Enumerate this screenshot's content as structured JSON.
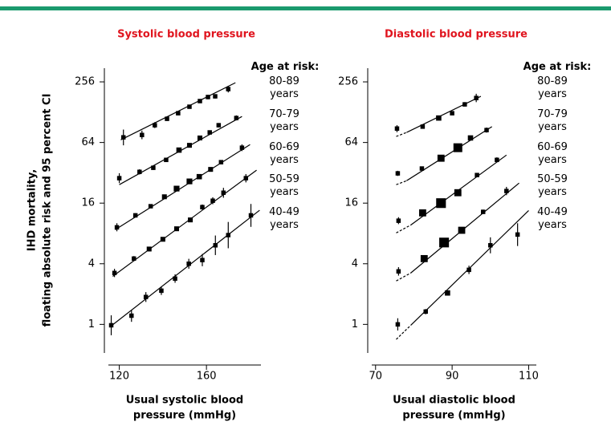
{
  "chart_data": [
    {
      "type": "scatter_fit",
      "title": "Systolic blood pressure",
      "ylabel": [
        "IHD mortality,",
        "floating absolute risk and 95 percent CI"
      ],
      "xlabel": [
        "Usual systolic blood",
        "pressure (mmHg)"
      ],
      "legend_title": "Age at risk:",
      "log_y": true,
      "color": "#000000",
      "dashed_start": false,
      "xlim": [
        115,
        185
      ],
      "xticks": [
        120,
        160
      ],
      "ylim": [
        0.52,
        350
      ],
      "yticks": [
        1,
        4,
        16,
        64,
        256
      ],
      "series": [
        {
          "name": "80-89 years",
          "x": [
            121.9,
            130.4,
            136.3,
            141.9,
            147,
            152.2,
            157,
            160.7,
            164,
            170
          ],
          "values": [
            72,
            76,
            95,
            110,
            125,
            145,
            165,
            181,
            184,
            217
          ],
          "lower": [
            60,
            69,
            89,
            105,
            120,
            139,
            159,
            172,
            175,
            201
          ],
          "upper": [
            86,
            84,
            102,
            116,
            130,
            151,
            172,
            190,
            193,
            234
          ],
          "sizes": [
            1,
            1,
            1,
            1,
            1,
            1,
            1,
            1,
            1,
            1
          ],
          "fit_x": [
            120.7,
            173.3
          ],
          "fit_y": [
            68,
            251
          ]
        },
        {
          "name": "70-79 years",
          "x": [
            120,
            129.3,
            135.6,
            141.5,
            147.4,
            152.2,
            157,
            161.5,
            165.6,
            173.7
          ],
          "values": [
            28.3,
            32.7,
            35.9,
            43,
            53.8,
            60,
            71,
            80.6,
            95,
            112
          ],
          "lower": [
            25.3,
            30.8,
            34.2,
            41,
            51.7,
            57.7,
            68.3,
            77.5,
            90.5,
            106
          ],
          "upper": [
            31.7,
            34.7,
            37.7,
            45.2,
            56,
            62.4,
            73.8,
            83.8,
            99.8,
            119
          ],
          "sizes": [
            1,
            1,
            1,
            1,
            1.2,
            1.1,
            1.1,
            1,
            1,
            1
          ],
          "fit_x": [
            120,
            176.3
          ],
          "fit_y": [
            24.4,
            116
          ]
        },
        {
          "name": "60-69 years",
          "x": [
            118.9,
            127.4,
            134.4,
            140.7,
            146.3,
            152.2,
            156.7,
            161.9,
            166.7,
            176.3
          ],
          "values": [
            9.2,
            12.1,
            14.9,
            18.5,
            22.3,
            26.3,
            29.3,
            34.6,
            40.8,
            56.8
          ],
          "lower": [
            8.4,
            11.5,
            14.3,
            17.8,
            21.4,
            25.3,
            28.2,
            33.3,
            38.9,
            52.6
          ],
          "upper": [
            10.1,
            12.7,
            15.5,
            19.2,
            23.2,
            27.4,
            30.5,
            36,
            42.8,
            61.3
          ],
          "sizes": [
            1,
            1,
            1,
            1.1,
            1.3,
            1.3,
            1.2,
            1.1,
            1,
            1
          ],
          "fit_x": [
            118.1,
            180
          ],
          "fit_y": [
            8.7,
            61
          ]
        },
        {
          "name": "50-59 years",
          "x": [
            117.8,
            126.7,
            133.7,
            140,
            146.3,
            152.6,
            158.1,
            162.9,
            167.8,
            178.1
          ],
          "values": [
            3.24,
            4.5,
            5.6,
            7.0,
            8.9,
            10.9,
            14.6,
            16.9,
            20.3,
            28.3
          ],
          "lower": [
            2.95,
            4.25,
            5.33,
            6.67,
            8.48,
            10.4,
            13.8,
            15.6,
            18.1,
            25.7
          ],
          "upper": [
            3.56,
            4.77,
            5.88,
            7.35,
            9.35,
            11.4,
            15.5,
            18.3,
            22.7,
            31.1
          ],
          "sizes": [
            1,
            1,
            1.1,
            1.1,
            1.1,
            1.1,
            1,
            1,
            1,
            1
          ],
          "fit_x": [
            117,
            183
          ],
          "fit_y": [
            3.0,
            34
          ]
        },
        {
          "name": "40-49 years",
          "x": [
            116.3,
            125.6,
            132.2,
            139.3,
            145.6,
            151.9,
            158.1,
            164.1,
            170,
            180.4
          ],
          "values": [
            0.98,
            1.22,
            1.87,
            2.16,
            2.85,
            4.0,
            4.35,
            6.1,
            7.7,
            12.1
          ],
          "lower": [
            0.78,
            1.06,
            1.67,
            1.96,
            2.59,
            3.57,
            3.78,
            4.88,
            5.7,
            9.3
          ],
          "upper": [
            1.23,
            1.4,
            2.09,
            2.38,
            3.14,
            4.48,
            5.0,
            7.63,
            10.4,
            15.7
          ],
          "sizes": [
            1,
            1,
            1,
            1,
            1,
            1,
            1,
            1,
            1,
            1
          ],
          "fit_x": [
            115.9,
            184.4
          ],
          "fit_y": [
            0.95,
            13.6
          ]
        }
      ]
    },
    {
      "type": "scatter_fit",
      "title": "Diastolic blood pressure",
      "xlabel": [
        "Usual diastolic blood",
        "pressure (mmHg)"
      ],
      "legend_title": "Age at risk:",
      "log_y": true,
      "color": "#000000",
      "dashed_start": true,
      "xlim": [
        69,
        112
      ],
      "xticks": [
        70,
        90,
        110
      ],
      "ylim": [
        0.52,
        350
      ],
      "yticks": [
        1,
        4,
        16,
        64,
        256
      ],
      "series": [
        {
          "name": "80-89 years",
          "x": [
            75.6,
            82.3,
            86.5,
            90,
            93.3,
            96.3
          ],
          "values": [
            88,
            92,
            112,
            125,
            153,
            177
          ],
          "lower": [
            81,
            88,
            108,
            120,
            146,
            161
          ],
          "upper": [
            95,
            96,
            116,
            130,
            161,
            195
          ],
          "sizes": [
            1,
            1,
            1.2,
            1,
            1,
            1
          ],
          "fit_x": [
            75.4,
            78.1,
            97.5
          ],
          "fit_y": [
            73.5,
            80.5,
            184
          ]
        },
        {
          "name": "70-79 years",
          "x": [
            75.8,
            82.1,
            87.1,
            91.5,
            94.8,
            99
          ],
          "values": [
            31.6,
            35.3,
            44.7,
            56.8,
            71,
            85
          ],
          "lower": [
            29.8,
            33.9,
            43.4,
            55.1,
            68.3,
            80.2
          ],
          "upper": [
            33.5,
            36.7,
            46,
            58.5,
            73.8,
            90.1
          ],
          "sizes": [
            1,
            1,
            1.6,
            2,
            1.2,
            1
          ],
          "fit_x": [
            75.4,
            78.1,
            100.4
          ],
          "fit_y": [
            24.4,
            26.7,
            92
          ]
        },
        {
          "name": "60-69 years",
          "x": [
            76,
            82.3,
            87.1,
            91.5,
            96.5,
            101.7
          ],
          "values": [
            10.7,
            12.8,
            16,
            20.3,
            30.4,
            43
          ],
          "lower": [
            9.9,
            12.3,
            15.5,
            19.7,
            29.2,
            40.6
          ],
          "upper": [
            11.6,
            13.3,
            16.5,
            20.9,
            31.6,
            45.6
          ],
          "sizes": [
            1,
            1.6,
            2.2,
            1.6,
            1,
            1
          ],
          "fit_x": [
            75.4,
            79.2,
            104.2
          ],
          "fit_y": [
            8.1,
            9.7,
            48
          ]
        },
        {
          "name": "50-59 years",
          "x": [
            76,
            82.7,
            87.9,
            92.5,
            98.1,
            104.2
          ],
          "values": [
            3.36,
            4.5,
            6.5,
            8.6,
            13.1,
            21.1
          ],
          "lower": [
            3.05,
            4.33,
            6.31,
            8.35,
            12.5,
            19.2
          ],
          "upper": [
            3.7,
            4.68,
            6.7,
            8.86,
            13.8,
            23.2
          ],
          "sizes": [
            1,
            1.6,
            2.2,
            1.6,
            1,
            1
          ],
          "fit_x": [
            75.4,
            79.2,
            107.5
          ],
          "fit_y": [
            2.7,
            3.24,
            25.3
          ]
        },
        {
          "name": "40-49 years",
          "x": [
            75.8,
            83.1,
            88.8,
            94.4,
            100,
            107.1
          ],
          "values": [
            1.0,
            1.34,
            2.05,
            3.48,
            6.1,
            7.8
          ],
          "lower": [
            0.87,
            1.26,
            1.93,
            3.16,
            5.08,
            6.0
          ],
          "upper": [
            1.15,
            1.42,
            2.17,
            3.83,
            7.32,
            10.1
          ],
          "sizes": [
            1,
            1,
            1.2,
            1,
            1,
            1
          ],
          "fit_x": [
            75.4,
            79.2,
            110
          ],
          "fit_y": [
            0.71,
            0.98,
            13.5
          ]
        }
      ]
    }
  ]
}
